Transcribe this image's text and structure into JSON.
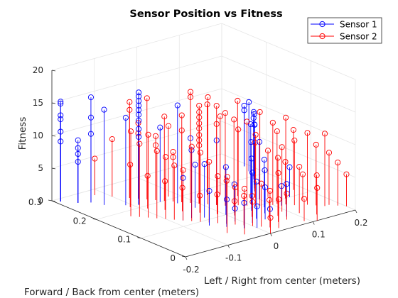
{
  "chart_data": {
    "type": "stem3",
    "title": "Sensor Position vs Fitness",
    "xlabel": "Left / Right from center (meters)",
    "ylabel": "Forward / Back from center (meters)",
    "zlabel": "Fitness",
    "xlim": [
      -0.2,
      0.2
    ],
    "ylim": [
      0,
      0.3
    ],
    "zlim": [
      0,
      20
    ],
    "xticks": [
      "-0.2",
      "-0.1",
      "0",
      "0.1",
      "0.2"
    ],
    "yticks": [
      "0",
      "0.1",
      "0.2",
      "0.3"
    ],
    "zticks": [
      "0",
      "5",
      "10",
      "15",
      "20"
    ],
    "legend_position": "top-right",
    "colors": {
      "sensor1": "#0000ff",
      "sensor2": "#ff0000"
    },
    "series": [
      {
        "name": "Sensor 1",
        "color": "#0000ff",
        "points": [
          [
            -0.19,
            0.29,
            15.3
          ],
          [
            -0.19,
            0.29,
            15.0
          ],
          [
            -0.19,
            0.29,
            13.2
          ],
          [
            -0.19,
            0.29,
            12.6
          ],
          [
            -0.19,
            0.29,
            10.7
          ],
          [
            -0.19,
            0.29,
            9.2
          ],
          [
            -0.17,
            0.27,
            9.6
          ],
          [
            -0.17,
            0.27,
            8.4
          ],
          [
            -0.17,
            0.27,
            7.5
          ],
          [
            -0.17,
            0.27,
            6.3
          ],
          [
            -0.15,
            0.26,
            16.1
          ],
          [
            -0.15,
            0.26,
            13.0
          ],
          [
            -0.15,
            0.26,
            10.5
          ],
          [
            -0.14,
            0.24,
            14.6
          ],
          [
            -0.11,
            0.22,
            13.4
          ],
          [
            -0.09,
            0.21,
            17.2
          ],
          [
            -0.09,
            0.21,
            16.6
          ],
          [
            -0.09,
            0.21,
            15.9
          ],
          [
            -0.09,
            0.21,
            15.2
          ],
          [
            -0.09,
            0.21,
            14.5
          ],
          [
            -0.09,
            0.21,
            13.8
          ],
          [
            -0.09,
            0.21,
            12.9
          ],
          [
            -0.09,
            0.21,
            11.6
          ],
          [
            -0.09,
            0.21,
            10.4
          ],
          [
            -0.05,
            0.2,
            11.4
          ],
          [
            -0.03,
            0.18,
            15.0
          ],
          [
            -0.01,
            0.17,
            9.9
          ],
          [
            -0.06,
            0.12,
            10.4
          ],
          [
            -0.04,
            0.11,
            8.2
          ],
          [
            -0.02,
            0.15,
            6.6
          ],
          [
            0.0,
            0.1,
            7.3
          ],
          [
            0.02,
            0.14,
            9.9
          ],
          [
            -0.08,
            0.12,
            6.5
          ],
          [
            -0.06,
            0.08,
            5.3
          ],
          [
            -0.04,
            0.06,
            4.2
          ],
          [
            -0.02,
            0.04,
            3.9
          ],
          [
            0.0,
            0.03,
            3.3
          ],
          [
            0.02,
            0.02,
            2.8
          ],
          [
            0.04,
            0.05,
            4.9
          ],
          [
            0.06,
            0.07,
            6.6
          ],
          [
            0.08,
            0.09,
            7.3
          ],
          [
            0.1,
            0.12,
            8.8
          ],
          [
            0.12,
            0.15,
            10.2
          ],
          [
            0.14,
            0.17,
            10.9
          ],
          [
            0.16,
            0.19,
            10.3
          ],
          [
            0.18,
            0.22,
            10.6
          ],
          [
            0.19,
            0.24,
            9.3
          ],
          [
            0.19,
            0.24,
            8.6
          ],
          [
            0.17,
            0.2,
            8.9
          ],
          [
            0.13,
            0.16,
            9.8
          ],
          [
            0.09,
            0.13,
            11.4
          ],
          [
            0.07,
            0.11,
            9.6
          ],
          [
            0.05,
            0.09,
            8.0
          ],
          [
            0.03,
            0.06,
            5.7
          ],
          [
            0.01,
            0.05,
            7.7
          ],
          [
            -0.01,
            0.07,
            2.0
          ],
          [
            0.02,
            0.1,
            4.3
          ],
          [
            0.11,
            0.08,
            3.0
          ],
          [
            0.15,
            0.1,
            4.6
          ],
          [
            0.08,
            0.04,
            5.0
          ]
        ]
      },
      {
        "name": "Sensor 2",
        "color": "#ff0000",
        "points": [
          [
            -0.12,
            0.28,
            5.6
          ],
          [
            -0.1,
            0.26,
            8.8
          ],
          [
            -0.08,
            0.24,
            14.7
          ],
          [
            -0.08,
            0.24,
            13.5
          ],
          [
            -0.07,
            0.23,
            11.6
          ],
          [
            -0.07,
            0.23,
            10.0
          ],
          [
            -0.06,
            0.22,
            15.5
          ],
          [
            -0.05,
            0.21,
            9.8
          ],
          [
            -0.05,
            0.21,
            8.4
          ],
          [
            -0.04,
            0.2,
            12.9
          ],
          [
            -0.03,
            0.19,
            7.6
          ],
          [
            -0.03,
            0.19,
            6.8
          ],
          [
            -0.02,
            0.18,
            13.3
          ],
          [
            -0.02,
            0.18,
            11.0
          ],
          [
            -0.01,
            0.17,
            17.0
          ],
          [
            -0.01,
            0.17,
            16.2
          ],
          [
            0.0,
            0.16,
            15.0
          ],
          [
            0.0,
            0.16,
            14.0
          ],
          [
            0.0,
            0.16,
            13.2
          ],
          [
            0.0,
            0.16,
            12.3
          ],
          [
            0.0,
            0.16,
            11.5
          ],
          [
            0.0,
            0.16,
            10.5
          ],
          [
            0.0,
            0.16,
            9.7
          ],
          [
            0.0,
            0.16,
            8.9
          ],
          [
            0.01,
            0.15,
            16.4
          ],
          [
            0.02,
            0.14,
            15.2
          ],
          [
            0.02,
            0.14,
            12.4
          ],
          [
            0.03,
            0.13,
            14.2
          ],
          [
            0.04,
            0.12,
            13.3
          ],
          [
            0.05,
            0.12,
            11.6
          ],
          [
            0.06,
            0.11,
            12.9
          ],
          [
            0.07,
            0.1,
            11.0
          ],
          [
            0.08,
            0.1,
            14.3
          ],
          [
            0.1,
            0.09,
            12.6
          ],
          [
            0.11,
            0.09,
            11.1
          ],
          [
            0.12,
            0.08,
            13.3
          ],
          [
            0.13,
            0.07,
            9.9
          ],
          [
            0.15,
            0.06,
            11.0
          ],
          [
            0.16,
            0.05,
            9.3
          ],
          [
            0.17,
            0.04,
            11.1
          ],
          [
            0.18,
            0.04,
            8.0
          ],
          [
            0.19,
            0.03,
            6.6
          ],
          [
            0.2,
            0.02,
            4.9
          ],
          [
            -0.14,
            0.18,
            13.0
          ],
          [
            -0.13,
            0.17,
            11.2
          ],
          [
            -0.12,
            0.16,
            12.7
          ],
          [
            -0.11,
            0.15,
            10.3
          ],
          [
            -0.1,
            0.14,
            9.5
          ],
          [
            -0.09,
            0.13,
            8.3
          ],
          [
            -0.08,
            0.12,
            7.7
          ],
          [
            -0.07,
            0.11,
            11.4
          ],
          [
            -0.06,
            0.1,
            10.6
          ],
          [
            -0.05,
            0.09,
            9.3
          ],
          [
            -0.04,
            0.08,
            7.2
          ],
          [
            -0.03,
            0.07,
            6.6
          ],
          [
            -0.02,
            0.06,
            5.7
          ],
          [
            -0.01,
            0.05,
            4.5
          ],
          [
            0.0,
            0.04,
            3.7
          ],
          [
            0.01,
            0.03,
            6.6
          ],
          [
            0.02,
            0.02,
            5.6
          ],
          [
            0.03,
            0.01,
            4.4
          ],
          [
            0.05,
            0.03,
            7.5
          ],
          [
            0.07,
            0.05,
            8.9
          ],
          [
            0.09,
            0.06,
            9.9
          ],
          [
            0.11,
            0.04,
            7.1
          ],
          [
            0.13,
            0.02,
            6.0
          ],
          [
            -0.11,
            0.21,
            6.5
          ],
          [
            -0.09,
            0.19,
            5.0
          ],
          [
            -0.07,
            0.17,
            4.4
          ],
          [
            -0.05,
            0.15,
            3.6
          ],
          [
            -0.03,
            0.13,
            2.6
          ],
          [
            -0.01,
            0.11,
            3.0
          ],
          [
            0.01,
            0.09,
            2.2
          ],
          [
            0.03,
            0.07,
            3.2
          ],
          [
            0.05,
            0.05,
            2.8
          ],
          [
            0.07,
            0.03,
            4.0
          ],
          [
            0.09,
            0.01,
            3.4
          ],
          [
            0.11,
            0.0,
            5.0
          ],
          [
            -0.02,
            0.21,
            10.8
          ],
          [
            0.04,
            0.18,
            13.9
          ],
          [
            0.06,
            0.17,
            12.0
          ],
          [
            0.08,
            0.15,
            14.6
          ],
          [
            0.1,
            0.13,
            8.4
          ],
          [
            0.12,
            0.12,
            7.1
          ],
          [
            0.14,
            0.1,
            5.6
          ],
          [
            0.16,
            0.08,
            3.9
          ],
          [
            -0.06,
            0.04,
            8.6
          ],
          [
            -0.04,
            0.02,
            7.0
          ],
          [
            0.0,
            0.0,
            2.4
          ],
          [
            0.18,
            0.12,
            9.2
          ]
        ]
      }
    ]
  }
}
